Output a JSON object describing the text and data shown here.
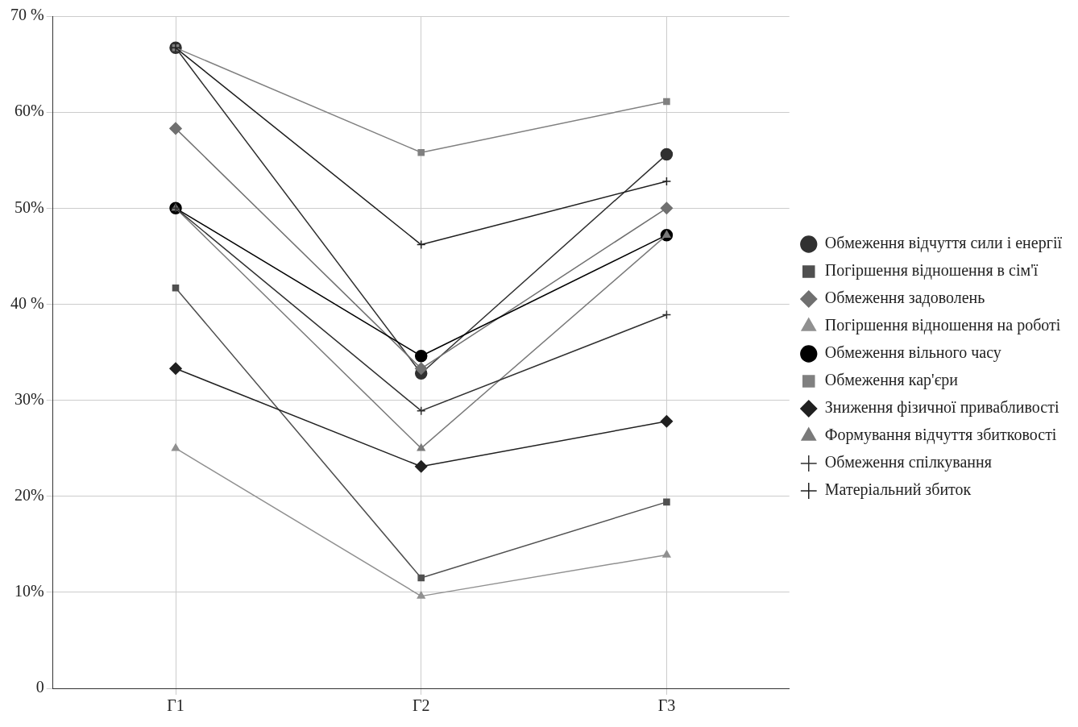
{
  "chart_data": {
    "type": "line",
    "categories": [
      "Г1",
      "Г2",
      "Г3"
    ],
    "ylim": [
      0,
      70
    ],
    "yticks": [
      {
        "value": 0,
        "label": "0"
      },
      {
        "value": 10,
        "label": "10%"
      },
      {
        "value": 20,
        "label": "20%"
      },
      {
        "value": 30,
        "label": "30%"
      },
      {
        "value": 40,
        "label": "40 %"
      },
      {
        "value": 50,
        "label": "50%"
      },
      {
        "value": 60,
        "label": "60%"
      },
      {
        "value": 70,
        "label": "70 %"
      }
    ],
    "grid": true,
    "legend": "right",
    "line_style": "solid",
    "series": [
      {
        "name": "Обмеження відчуття сили і енергії",
        "color": "#303030",
        "marker": "circle",
        "values": [
          66.7,
          32.8,
          55.6
        ]
      },
      {
        "name": "Погіршення відношення в сім'ї",
        "color": "#505050",
        "marker": "square",
        "values": [
          41.7,
          11.5,
          19.4
        ]
      },
      {
        "name": "Обмеження задоволень",
        "color": "#707070",
        "marker": "diamond",
        "values": [
          58.3,
          33.3,
          50
        ]
      },
      {
        "name": "Погіршення відношення на роботі",
        "color": "#909090",
        "marker": "triangle",
        "values": [
          25,
          9.6,
          13.9
        ]
      },
      {
        "name": "Обмеження вільного часу",
        "color": "#000000",
        "marker": "circle",
        "values": [
          50,
          34.6,
          47.2
        ]
      },
      {
        "name": "Обмеження кар'єри",
        "color": "#808080",
        "marker": "square",
        "values": [
          66.7,
          55.8,
          61.1
        ]
      },
      {
        "name": "Зниження фізичної привабливості",
        "color": "#202020",
        "marker": "diamond",
        "values": [
          33.3,
          23.1,
          27.8
        ]
      },
      {
        "name": "Формування відчуття збитковості",
        "color": "#7a7a7a",
        "marker": "triangle",
        "values": [
          50,
          25,
          47.2
        ]
      },
      {
        "name": "Обмеження спілкування",
        "color": "#303030",
        "marker": "cross",
        "values": [
          50,
          28.9,
          38.9
        ]
      },
      {
        "name": "Матеріальний збиток",
        "color": "#202020",
        "marker": "cross",
        "values": [
          66.7,
          46.2,
          52.8
        ]
      }
    ]
  }
}
